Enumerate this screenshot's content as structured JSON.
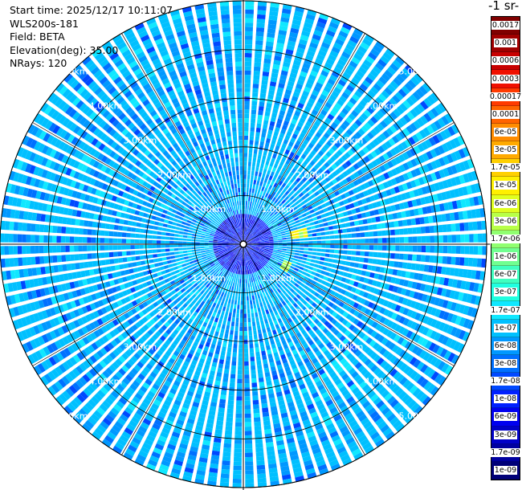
{
  "info": {
    "start_time": "Start time: 2025/12/17 10:11:07",
    "instrument": "WLS200s-181",
    "field": "Field: BETA",
    "elevation": "Elevation(deg): 35.00",
    "nrays": "NRays: 120"
  },
  "chart_data": {
    "type": "heatmap",
    "projection": "polar (plan position indicator)",
    "title": "",
    "colorbar_title": "-1 sr-",
    "max_range_km": 5.0,
    "range_rings_km": [
      1,
      2,
      3,
      4,
      5
    ],
    "ring_tick_labels": [
      "1.00km",
      "2.00km",
      "3.00km",
      "4.00km",
      "5.00km"
    ],
    "n_rays": 120,
    "colorbar_labels": [
      "0.0017",
      "0.001",
      "0.0006",
      "0.0003",
      "0.00017",
      "0.0001",
      "6e-05",
      "3e-05",
      "1.7e-05",
      "1e-05",
      "6e-06",
      "3e-06",
      "1.7e-06",
      "1e-06",
      "6e-07",
      "3e-07",
      "1.7e-07",
      "1e-07",
      "6e-08",
      "3e-08",
      "1.7e-08",
      "1e-08",
      "6e-09",
      "3e-09",
      "1.7e-09",
      "1e-09"
    ],
    "colorbar_colors": [
      "#800000",
      "#a00000",
      "#c80000",
      "#f01000",
      "#ff3a00",
      "#ff6400",
      "#ff8c00",
      "#ffaa00",
      "#ffd000",
      "#fff000",
      "#e0ff20",
      "#b8ff48",
      "#90ff70",
      "#70ff90",
      "#40ffc0",
      "#20ffe0",
      "#10e8ff",
      "#00c0ff",
      "#0098ff",
      "#0070ff",
      "#0048ff",
      "#0020ff",
      "#0000f0",
      "#0000c8",
      "#0000a0",
      "#000078"
    ],
    "background_value": "1e-07",
    "features": [
      {
        "description": "elevated backscatter patch",
        "azimuth_deg": 80,
        "range_km": [
          1.0,
          1.3
        ],
        "value": "1e-05"
      },
      {
        "description": "elevated backscatter patch",
        "azimuth_deg": 117,
        "range_km": [
          0.85,
          1.05
        ],
        "value": "3e-06"
      },
      {
        "description": "near-field low-value core",
        "azimuth_deg": 0,
        "range_km": [
          0.0,
          0.6
        ],
        "value": "1e-08"
      }
    ],
    "grid": true
  }
}
